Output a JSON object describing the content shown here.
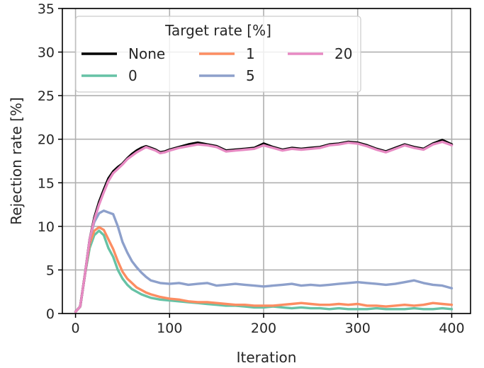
{
  "chart_data": {
    "type": "line",
    "title": "",
    "xlabel": "Iteration",
    "ylabel": "Rejection rate [%]",
    "xlim": [
      -14,
      420
    ],
    "ylim": [
      0,
      35
    ],
    "xticks": [
      0,
      100,
      200,
      300,
      400
    ],
    "yticks": [
      0,
      5,
      10,
      15,
      20,
      25,
      30,
      35
    ],
    "grid": true,
    "legend": {
      "title": "Target rate [%]",
      "placement": "top-left",
      "columns": 3
    },
    "series": [
      {
        "name": "None",
        "color": "#000000",
        "x": [
          0,
          5,
          10,
          15,
          20,
          25,
          30,
          35,
          40,
          45,
          50,
          55,
          60,
          65,
          70,
          75,
          80,
          85,
          90,
          95,
          100,
          110,
          120,
          130,
          140,
          150,
          160,
          170,
          180,
          190,
          200,
          210,
          220,
          230,
          240,
          250,
          260,
          270,
          280,
          290,
          300,
          310,
          320,
          330,
          340,
          350,
          360,
          370,
          380,
          390,
          400
        ],
        "y": [
          0.2,
          0.8,
          4.5,
          8.5,
          11.0,
          12.8,
          14.2,
          15.5,
          16.3,
          16.8,
          17.2,
          17.8,
          18.3,
          18.7,
          19.0,
          19.2,
          19.0,
          18.8,
          18.5,
          18.6,
          18.8,
          19.1,
          19.4,
          19.6,
          19.4,
          19.2,
          18.7,
          18.8,
          18.9,
          19.0,
          19.5,
          19.1,
          18.8,
          19.0,
          18.9,
          19.0,
          19.1,
          19.4,
          19.5,
          19.7,
          19.6,
          19.3,
          18.9,
          18.6,
          19.0,
          19.4,
          19.1,
          18.9,
          19.5,
          19.9,
          19.4
        ]
      },
      {
        "name": "0",
        "color": "#66c2a5",
        "x": [
          0,
          5,
          10,
          15,
          20,
          25,
          30,
          35,
          40,
          45,
          50,
          55,
          60,
          65,
          70,
          75,
          80,
          90,
          100,
          110,
          120,
          130,
          140,
          150,
          160,
          170,
          180,
          190,
          200,
          210,
          220,
          230,
          240,
          250,
          260,
          270,
          280,
          290,
          300,
          310,
          320,
          330,
          340,
          350,
          360,
          370,
          380,
          390,
          400
        ],
        "y": [
          0.2,
          0.8,
          4.5,
          7.5,
          9.0,
          9.5,
          9.0,
          7.5,
          6.5,
          5.0,
          4.0,
          3.3,
          2.8,
          2.5,
          2.2,
          2.0,
          1.8,
          1.6,
          1.5,
          1.4,
          1.3,
          1.2,
          1.1,
          1.0,
          0.9,
          0.9,
          0.8,
          0.7,
          0.7,
          0.8,
          0.7,
          0.6,
          0.7,
          0.6,
          0.6,
          0.5,
          0.6,
          0.5,
          0.5,
          0.5,
          0.6,
          0.5,
          0.5,
          0.5,
          0.6,
          0.5,
          0.5,
          0.6,
          0.5
        ]
      },
      {
        "name": "1",
        "color": "#fc8d62",
        "x": [
          0,
          5,
          10,
          15,
          20,
          25,
          30,
          35,
          40,
          45,
          50,
          55,
          60,
          65,
          70,
          75,
          80,
          90,
          100,
          110,
          120,
          130,
          140,
          150,
          160,
          170,
          180,
          190,
          200,
          210,
          220,
          230,
          240,
          250,
          260,
          270,
          280,
          290,
          300,
          310,
          320,
          330,
          340,
          350,
          360,
          370,
          380,
          390,
          400
        ],
        "y": [
          0.2,
          0.8,
          4.5,
          8.0,
          9.5,
          9.9,
          9.6,
          8.5,
          7.4,
          6.0,
          4.8,
          4.0,
          3.5,
          3.0,
          2.7,
          2.4,
          2.2,
          1.9,
          1.7,
          1.6,
          1.4,
          1.3,
          1.3,
          1.2,
          1.1,
          1.0,
          1.0,
          0.9,
          0.9,
          0.9,
          1.0,
          1.1,
          1.2,
          1.1,
          1.0,
          1.0,
          1.1,
          1.0,
          1.1,
          0.9,
          0.9,
          0.8,
          0.9,
          1.0,
          0.9,
          1.0,
          1.2,
          1.1,
          1.0
        ]
      },
      {
        "name": "5",
        "color": "#8da0cb",
        "x": [
          0,
          5,
          10,
          15,
          20,
          25,
          30,
          35,
          40,
          45,
          50,
          55,
          60,
          65,
          70,
          75,
          80,
          90,
          100,
          110,
          120,
          130,
          140,
          150,
          160,
          170,
          180,
          190,
          200,
          210,
          220,
          230,
          240,
          250,
          260,
          270,
          280,
          290,
          300,
          310,
          320,
          330,
          340,
          350,
          360,
          370,
          380,
          390,
          400
        ],
        "y": [
          0.2,
          0.8,
          4.5,
          8.5,
          10.5,
          11.5,
          11.8,
          11.6,
          11.4,
          10.0,
          8.2,
          7.0,
          6.0,
          5.3,
          4.7,
          4.2,
          3.8,
          3.5,
          3.4,
          3.5,
          3.3,
          3.4,
          3.5,
          3.2,
          3.3,
          3.4,
          3.3,
          3.2,
          3.1,
          3.2,
          3.3,
          3.4,
          3.2,
          3.3,
          3.2,
          3.3,
          3.4,
          3.5,
          3.6,
          3.5,
          3.4,
          3.3,
          3.4,
          3.6,
          3.8,
          3.5,
          3.3,
          3.2,
          2.9
        ]
      },
      {
        "name": "20",
        "color": "#e78ac3",
        "x": [
          0,
          5,
          10,
          15,
          20,
          25,
          30,
          35,
          40,
          45,
          50,
          55,
          60,
          65,
          70,
          75,
          80,
          85,
          90,
          95,
          100,
          110,
          120,
          130,
          140,
          150,
          160,
          170,
          180,
          190,
          200,
          210,
          220,
          230,
          240,
          250,
          260,
          270,
          280,
          290,
          300,
          310,
          320,
          330,
          340,
          350,
          360,
          370,
          380,
          390,
          400
        ],
        "y": [
          0.2,
          0.8,
          4.5,
          8.5,
          10.8,
          12.5,
          13.9,
          15.2,
          16.1,
          16.6,
          17.1,
          17.7,
          18.1,
          18.5,
          18.8,
          19.1,
          18.9,
          18.7,
          18.4,
          18.5,
          18.7,
          19.0,
          19.2,
          19.4,
          19.3,
          19.1,
          18.6,
          18.7,
          18.8,
          18.9,
          19.3,
          19.0,
          18.7,
          18.9,
          18.8,
          18.9,
          19.0,
          19.3,
          19.4,
          19.6,
          19.5,
          19.2,
          18.8,
          18.5,
          18.9,
          19.3,
          19.0,
          18.8,
          19.4,
          19.7,
          19.3
        ]
      }
    ]
  }
}
